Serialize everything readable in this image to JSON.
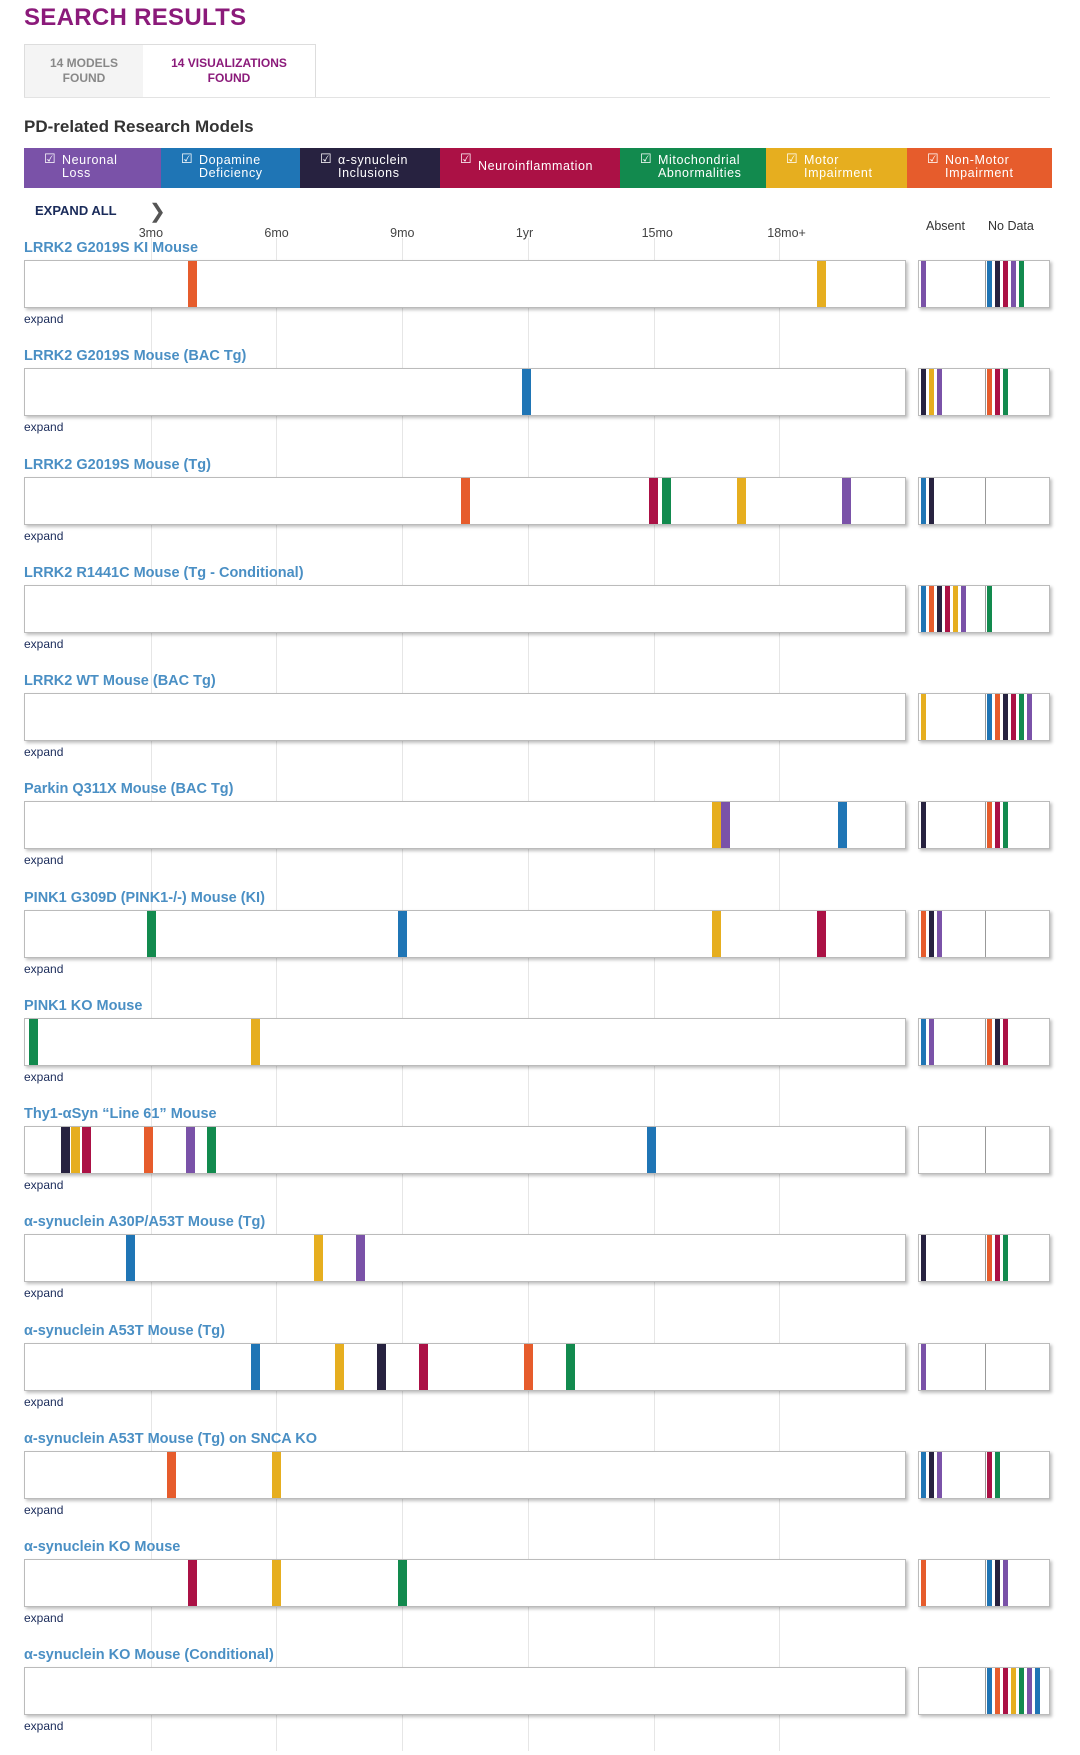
{
  "page": {
    "title": "SEARCH RESULTS"
  },
  "tabs": [
    {
      "label": "14 MODELS\nFOUND"
    },
    {
      "label": "14 VISUALIZATIONS\nFOUND"
    }
  ],
  "section_title": "PD-related Research Models",
  "colors": {
    "neuronal": "#7a52a8",
    "dopamine": "#1f75b5",
    "synuclein": "#272240",
    "neuroinflammation": "#ab1145",
    "mitochondrial": "#128a4e",
    "motor": "#e6ae1f",
    "nonmotor": "#e65c2c"
  },
  "filters": [
    {
      "key": "neuronal",
      "label": "Neuronal\nLoss"
    },
    {
      "key": "dopamine",
      "label": "Dopamine\nDeficiency"
    },
    {
      "key": "synuclein",
      "label": "α-synuclein\nInclusions"
    },
    {
      "key": "neuroinflammation",
      "label": "Neuroinflammation"
    },
    {
      "key": "mitochondrial",
      "label": "Mitochondrial\nAbnormalities"
    },
    {
      "key": "motor",
      "label": "Motor\nImpairment"
    },
    {
      "key": "nonmotor",
      "label": "Non-Motor\nImpairment"
    }
  ],
  "checkbox_glyph": "☑",
  "expand_all_label": "EXPAND ALL",
  "chevron": "❯",
  "axis": {
    "domain_months": [
      0,
      21
    ],
    "ticks": [
      {
        "label": "3mo",
        "month": 3
      },
      {
        "label": "6mo",
        "month": 6
      },
      {
        "label": "9mo",
        "month": 9
      },
      {
        "label": "1yr",
        "month": 12
      },
      {
        "label": "15mo",
        "month": 15
      },
      {
        "label": "18mo+",
        "month": 18
      }
    ]
  },
  "side_headers": {
    "absent": "Absent",
    "nodata": "No Data"
  },
  "expand_label": "expand",
  "models": [
    {
      "name": "LRRK2 G2019S KI Mouse",
      "events": [
        {
          "cat": "nonmotor",
          "month": 3.9
        },
        {
          "cat": "motor",
          "month": 18.9
        }
      ],
      "absent": [
        "neuronal"
      ],
      "nodata": [
        "dopamine",
        "synuclein",
        "neuroinflammation",
        "neuronal",
        "mitochondrial"
      ]
    },
    {
      "name": "LRRK2 G2019S Mouse (BAC Tg)",
      "events": [
        {
          "cat": "dopamine",
          "month": 11.85
        }
      ],
      "absent": [
        "synuclein",
        "motor",
        "neuronal"
      ],
      "nodata": [
        "nonmotor",
        "neuroinflammation",
        "mitochondrial"
      ]
    },
    {
      "name": "LRRK2 G2019S Mouse (Tg)",
      "events": [
        {
          "cat": "nonmotor",
          "month": 10.4
        },
        {
          "cat": "neuroinflammation",
          "month": 14.9
        },
        {
          "cat": "mitochondrial",
          "month": 15.2
        },
        {
          "cat": "motor",
          "month": 17.0
        },
        {
          "cat": "neuronal",
          "month": 19.5
        }
      ],
      "absent": [
        "dopamine",
        "synuclein"
      ],
      "nodata": []
    },
    {
      "name": "LRRK2 R1441C Mouse (Tg - Conditional)",
      "events": [],
      "absent": [
        "dopamine",
        "nonmotor",
        "synuclein",
        "neuroinflammation",
        "motor",
        "neuronal"
      ],
      "nodata": [
        "mitochondrial"
      ]
    },
    {
      "name": "LRRK2 WT Mouse (BAC Tg)",
      "events": [],
      "absent": [
        "motor"
      ],
      "nodata": [
        "dopamine",
        "nonmotor",
        "synuclein",
        "neuroinflammation",
        "mitochondrial",
        "neuronal"
      ]
    },
    {
      "name": "Parkin Q311X Mouse (BAC Tg)",
      "events": [
        {
          "cat": "motor",
          "month": 16.4
        },
        {
          "cat": "neuronal",
          "month": 16.6
        },
        {
          "cat": "dopamine",
          "month": 19.4
        }
      ],
      "absent": [
        "synuclein"
      ],
      "nodata": [
        "nonmotor",
        "neuroinflammation",
        "mitochondrial"
      ]
    },
    {
      "name": "PINK1 G309D (PINK1-/-) Mouse (KI)",
      "events": [
        {
          "cat": "mitochondrial",
          "month": 2.9
        },
        {
          "cat": "dopamine",
          "month": 8.9
        },
        {
          "cat": "motor",
          "month": 16.4
        },
        {
          "cat": "neuroinflammation",
          "month": 18.9
        }
      ],
      "absent": [
        "nonmotor",
        "synuclein",
        "neuronal"
      ],
      "nodata": []
    },
    {
      "name": "PINK1 KO Mouse",
      "events": [
        {
          "cat": "mitochondrial",
          "month": 0.1
        },
        {
          "cat": "motor",
          "month": 5.4
        }
      ],
      "absent": [
        "dopamine",
        "neuronal"
      ],
      "nodata": [
        "nonmotor",
        "synuclein",
        "neuroinflammation"
      ]
    },
    {
      "name": "Thy1-αSyn “Line 61” Mouse",
      "events": [
        {
          "cat": "synuclein",
          "month": 0.85
        },
        {
          "cat": "motor",
          "month": 1.1
        },
        {
          "cat": "neuroinflammation",
          "month": 1.35
        },
        {
          "cat": "nonmotor",
          "month": 2.85
        },
        {
          "cat": "neuronal",
          "month": 3.85
        },
        {
          "cat": "mitochondrial",
          "month": 4.35
        },
        {
          "cat": "dopamine",
          "month": 14.85
        }
      ],
      "absent": [],
      "nodata": []
    },
    {
      "name": "α-synuclein A30P/A53T Mouse (Tg)",
      "events": [
        {
          "cat": "dopamine",
          "month": 2.4
        },
        {
          "cat": "motor",
          "month": 6.9
        },
        {
          "cat": "neuronal",
          "month": 7.9
        }
      ],
      "absent": [
        "synuclein"
      ],
      "nodata": [
        "nonmotor",
        "neuroinflammation",
        "mitochondrial"
      ]
    },
    {
      "name": "α-synuclein A53T Mouse (Tg)",
      "events": [
        {
          "cat": "dopamine",
          "month": 5.4
        },
        {
          "cat": "motor",
          "month": 7.4
        },
        {
          "cat": "synuclein",
          "month": 8.4
        },
        {
          "cat": "neuroinflammation",
          "month": 9.4
        },
        {
          "cat": "nonmotor",
          "month": 11.9
        },
        {
          "cat": "mitochondrial",
          "month": 12.9
        }
      ],
      "absent": [
        "neuronal"
      ],
      "nodata": []
    },
    {
      "name": "α-synuclein A53T Mouse (Tg) on SNCA KO",
      "events": [
        {
          "cat": "nonmotor",
          "month": 3.4
        },
        {
          "cat": "motor",
          "month": 5.9
        }
      ],
      "absent": [
        "dopamine",
        "synuclein",
        "neuronal"
      ],
      "nodata": [
        "neuroinflammation",
        "mitochondrial"
      ]
    },
    {
      "name": "α-synuclein KO Mouse",
      "events": [
        {
          "cat": "neuroinflammation",
          "month": 3.9
        },
        {
          "cat": "motor",
          "month": 5.9
        },
        {
          "cat": "mitochondrial",
          "month": 8.9
        }
      ],
      "absent": [
        "nonmotor"
      ],
      "nodata": [
        "dopamine",
        "synuclein",
        "neuronal"
      ]
    },
    {
      "name": "α-synuclein KO Mouse (Conditional)",
      "events": [],
      "absent": [],
      "nodata": [
        "dopamine",
        "nonmotor",
        "neuroinflammation",
        "motor",
        "mitochondrial",
        "neuronal",
        "dopamine"
      ]
    }
  ]
}
